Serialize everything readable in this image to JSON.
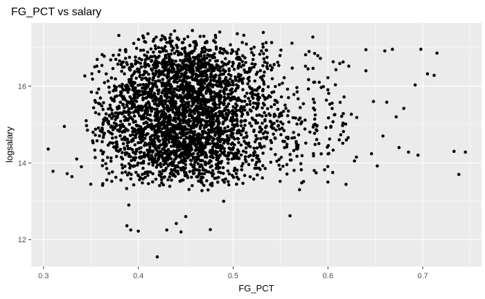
{
  "chart_data": {
    "type": "scatter",
    "title": "FG_PCT vs salary",
    "xlabel": "FG_PCT",
    "ylabel": "logsalary",
    "xlim": [
      0.287,
      0.762
    ],
    "ylim": [
      11.3,
      17.65
    ],
    "xticks": [
      0.3,
      0.4,
      0.5,
      0.6,
      0.7
    ],
    "xtick_labels": [
      "0.3",
      "0.4",
      "0.5",
      "0.6",
      "0.7"
    ],
    "yticks": [
      12,
      14,
      16
    ],
    "ytick_labels": [
      "12",
      "14",
      "16"
    ],
    "grid": true,
    "legend": "none",
    "colors": {
      "panel": "#ebebeb",
      "grid": "#ffffff",
      "point": "#000000"
    },
    "outliers": [
      [
        0.305,
        14.36
      ],
      [
        0.31,
        13.78
      ],
      [
        0.322,
        14.95
      ],
      [
        0.325,
        13.72
      ],
      [
        0.33,
        13.64
      ],
      [
        0.335,
        14.1
      ],
      [
        0.34,
        13.9
      ],
      [
        0.345,
        15.1
      ],
      [
        0.388,
        12.36
      ],
      [
        0.392,
        12.25
      ],
      [
        0.39,
        12.9
      ],
      [
        0.4,
        12.22
      ],
      [
        0.42,
        11.55
      ],
      [
        0.43,
        12.25
      ],
      [
        0.44,
        12.42
      ],
      [
        0.445,
        12.2
      ],
      [
        0.45,
        12.6
      ],
      [
        0.476,
        12.26
      ],
      [
        0.49,
        13.0
      ],
      [
        0.56,
        12.62
      ],
      [
        0.57,
        13.3
      ],
      [
        0.6,
        13.5
      ],
      [
        0.605,
        13.75
      ],
      [
        0.64,
        16.95
      ],
      [
        0.66,
        16.92
      ],
      [
        0.668,
        16.96
      ],
      [
        0.698,
        16.96
      ],
      [
        0.712,
        16.28
      ],
      [
        0.715,
        16.86
      ],
      [
        0.68,
        15.42
      ],
      [
        0.675,
        14.4
      ],
      [
        0.685,
        14.28
      ],
      [
        0.695,
        14.2
      ],
      [
        0.733,
        14.3
      ],
      [
        0.738,
        13.7
      ],
      [
        0.745,
        14.28
      ],
      [
        0.652,
        13.92
      ],
      [
        0.628,
        14.05
      ],
      [
        0.63,
        14.15
      ],
      [
        0.648,
        15.6
      ],
      [
        0.662,
        15.58
      ],
      [
        0.692,
        16.03
      ],
      [
        0.705,
        16.32
      ],
      [
        0.622,
        16.52
      ],
      [
        0.6,
        16.22
      ],
      [
        0.64,
        16.4
      ],
      [
        0.612,
        14.6
      ],
      [
        0.658,
        14.7
      ],
      [
        0.672,
        15.2
      ]
    ],
    "clusters": [
      {
        "cx": 0.45,
        "sx": 0.042,
        "cy": 15.25,
        "sy": 0.95,
        "count": 1700,
        "xr": [
          0.35,
          0.6
        ],
        "yr": [
          13.4,
          17.45
        ]
      },
      {
        "cx": 0.45,
        "sx": 0.035,
        "cy": 16.3,
        "sy": 0.55,
        "count": 550,
        "xr": [
          0.37,
          0.58
        ],
        "yr": [
          15.2,
          17.45
        ]
      },
      {
        "cx": 0.45,
        "sx": 0.045,
        "cy": 14.4,
        "sy": 0.45,
        "count": 450,
        "xr": [
          0.36,
          0.62
        ],
        "yr": [
          13.2,
          15.6
        ]
      },
      {
        "cx": 0.54,
        "sx": 0.05,
        "cy": 15.0,
        "sy": 1.0,
        "count": 300,
        "xr": [
          0.45,
          0.68
        ],
        "yr": [
          13.4,
          17.4
        ]
      },
      {
        "cx": 0.39,
        "sx": 0.025,
        "cy": 14.9,
        "sy": 0.9,
        "count": 180,
        "xr": [
          0.34,
          0.45
        ],
        "yr": [
          13.3,
          16.9
        ]
      }
    ]
  }
}
